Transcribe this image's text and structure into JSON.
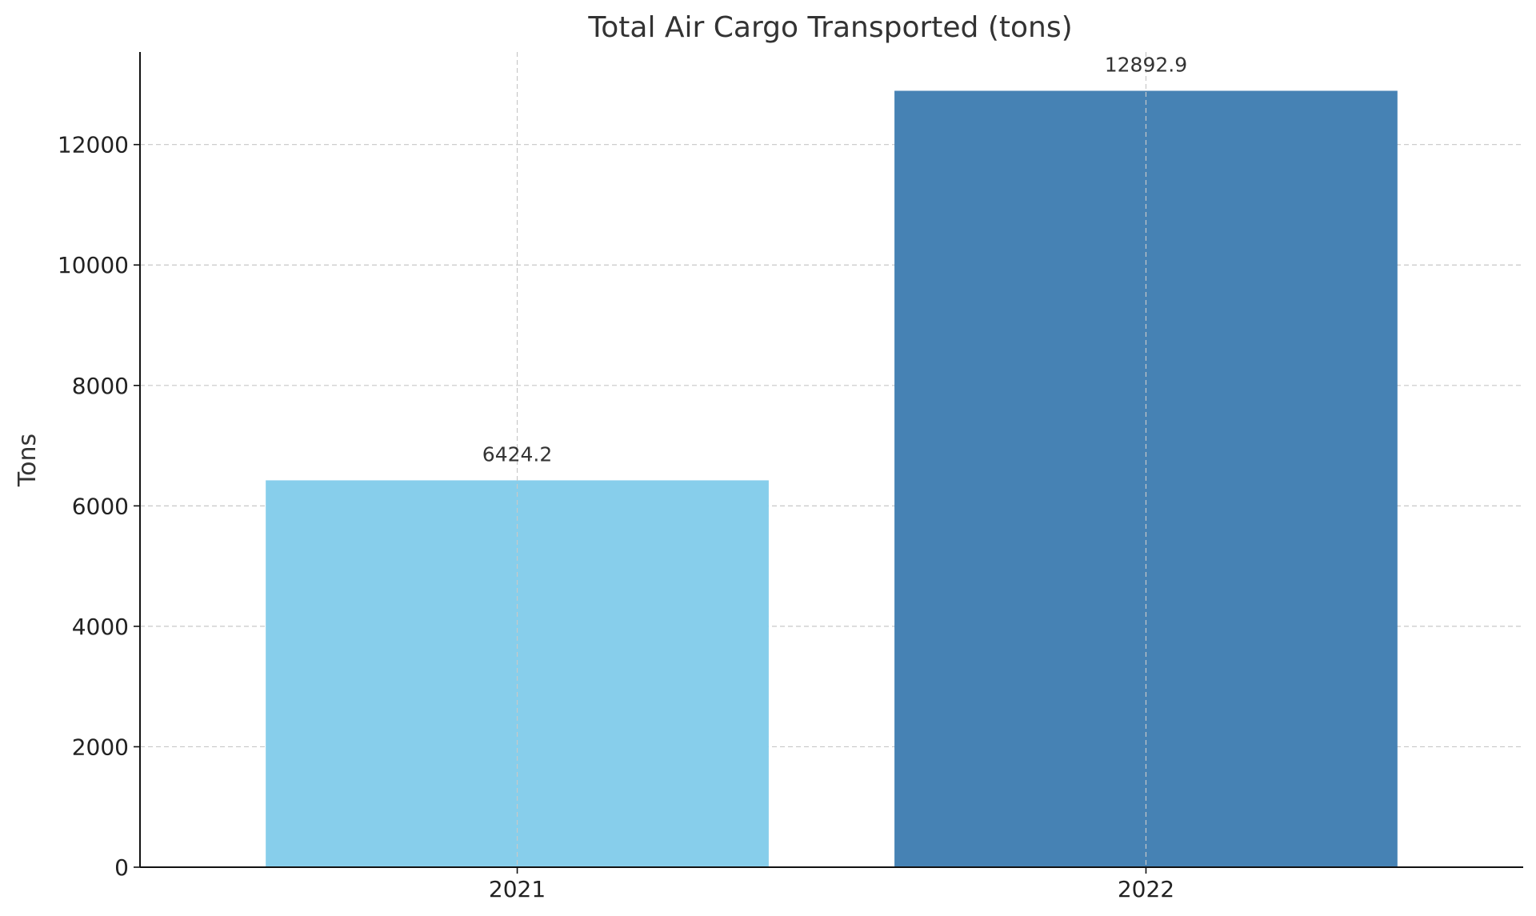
{
  "chart_data": {
    "type": "bar",
    "title": "Total Air Cargo Transported (tons)",
    "xlabel": "",
    "ylabel": "Tons",
    "categories": [
      "2021",
      "2022"
    ],
    "values": [
      6424.2,
      12892.9
    ],
    "value_labels": [
      "6424.2",
      "12892.9"
    ],
    "bar_colors": [
      "#87CEEB",
      "#4682B4"
    ],
    "ylim": [
      0,
      13537
    ],
    "yticks": [
      0,
      2000,
      4000,
      6000,
      8000,
      10000,
      12000
    ],
    "ytick_labels": [
      "0",
      "2000",
      "4000",
      "6000",
      "8000",
      "10000",
      "12000"
    ],
    "grid": true,
    "grid_style": "dashed",
    "grid_color": "#c8c8c8",
    "axis_color": "#111111"
  }
}
